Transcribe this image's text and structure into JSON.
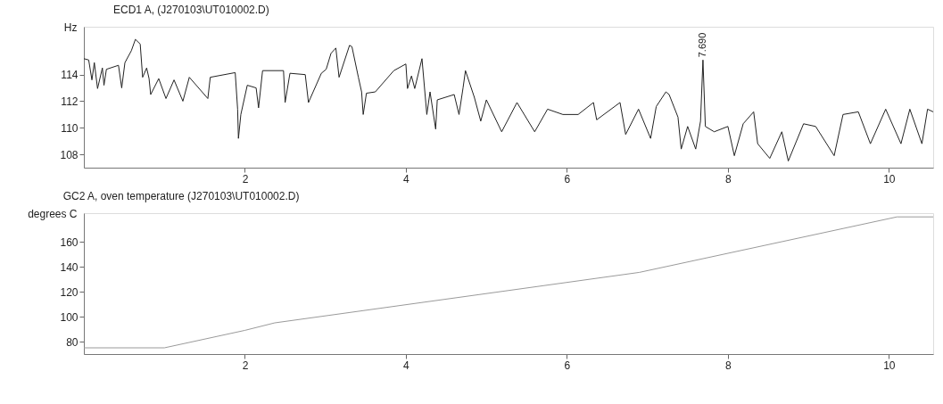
{
  "chart_data": [
    {
      "type": "line",
      "title": "ECD1 A, (J270103\\UT010002.D)",
      "ylabel": "Hz",
      "xlim": [
        0,
        10.55
      ],
      "xticks": [
        2,
        4,
        6,
        8,
        10
      ],
      "ylim": [
        107,
        117.6
      ],
      "yticks": [
        108,
        110,
        112,
        114
      ],
      "grid": false,
      "annotations": [
        {
          "text": "7.690",
          "x": 7.69,
          "y": 115.1
        }
      ],
      "series": [
        {
          "color": "#222222",
          "x": [
            0,
            0.06,
            0.1,
            0.13,
            0.17,
            0.23,
            0.25,
            0.28,
            0.43,
            0.47,
            0.51,
            0.59,
            0.64,
            0.7,
            0.73,
            0.78,
            0.81,
            0.83,
            0.93,
            1.02,
            1.12,
            1.23,
            1.31,
            1.54,
            1.57,
            1.88,
            1.91,
            1.92,
            1.95,
            2.03,
            2.14,
            2.17,
            2.22,
            2.48,
            2.5,
            2.56,
            2.75,
            2.79,
            2.95,
            3.01,
            3.07,
            3.13,
            3.17,
            3.3,
            3.33,
            3.41,
            3.45,
            3.47,
            3.51,
            3.62,
            3.85,
            4.0,
            4.02,
            4.07,
            4.11,
            4.2,
            4.26,
            4.3,
            4.37,
            4.39,
            4.6,
            4.66,
            4.71,
            4.74,
            4.85,
            4.93,
            5.0,
            5.19,
            5.38,
            5.6,
            5.76,
            5.95,
            6.14,
            6.33,
            6.37,
            6.66,
            6.73,
            6.89,
            7.04,
            7.11,
            7.23,
            7.27,
            7.38,
            7.42,
            7.5,
            7.6,
            7.66,
            7.69,
            7.72,
            7.83,
            8.0,
            8.08,
            8.19,
            8.32,
            8.37,
            8.52,
            8.67,
            8.75,
            8.94,
            9.09,
            9.32,
            9.43,
            9.62,
            9.77,
            9.96,
            10.15,
            10.26,
            10.41,
            10.48,
            10.55
          ],
          "values": [
            115.2,
            115.1,
            113.6,
            114.9,
            112.95,
            114.5,
            113.2,
            114.4,
            114.7,
            113.0,
            114.9,
            115.8,
            116.65,
            116.3,
            113.8,
            114.5,
            113.7,
            112.5,
            113.7,
            112.2,
            113.6,
            112.0,
            113.8,
            112.2,
            113.8,
            114.15,
            111.4,
            109.2,
            111.0,
            113.2,
            113.0,
            111.5,
            114.3,
            114.3,
            111.9,
            114.1,
            114.0,
            111.9,
            114.1,
            114.4,
            115.6,
            116.0,
            113.8,
            116.2,
            116.1,
            113.8,
            112.7,
            111.0,
            112.6,
            112.7,
            114.3,
            114.8,
            112.95,
            113.9,
            112.95,
            115.2,
            111.0,
            112.7,
            109.9,
            112.1,
            112.5,
            111.0,
            113.0,
            114.3,
            112.3,
            110.5,
            112.1,
            109.7,
            111.9,
            109.7,
            111.4,
            111.0,
            111.0,
            111.9,
            110.6,
            111.9,
            109.5,
            111.4,
            109.2,
            111.6,
            112.7,
            112.5,
            110.8,
            108.4,
            110.1,
            108.4,
            110.5,
            115.1,
            110.1,
            109.7,
            110.1,
            107.9,
            110.3,
            111.2,
            108.8,
            107.7,
            109.7,
            107.5,
            110.3,
            110.1,
            107.9,
            111.0,
            111.2,
            108.8,
            111.4,
            108.8,
            111.4,
            108.8,
            111.4,
            111.2
          ]
        }
      ]
    },
    {
      "type": "line",
      "title": "GC2 A, oven temperature (J270103\\UT010002.D)",
      "ylabel": "degrees C",
      "xlim": [
        0,
        10.55
      ],
      "xticks": [
        2,
        4,
        6,
        8,
        10
      ],
      "ylim": [
        70,
        183
      ],
      "yticks": [
        80,
        100,
        120,
        140,
        160
      ],
      "grid": false,
      "series": [
        {
          "color": "#9a9a9a",
          "x": [
            0,
            1.0,
            2.0,
            2.37,
            6.9,
            10.1,
            10.55
          ],
          "values": [
            75,
            75,
            89,
            95,
            135.5,
            180,
            180
          ]
        }
      ]
    }
  ]
}
